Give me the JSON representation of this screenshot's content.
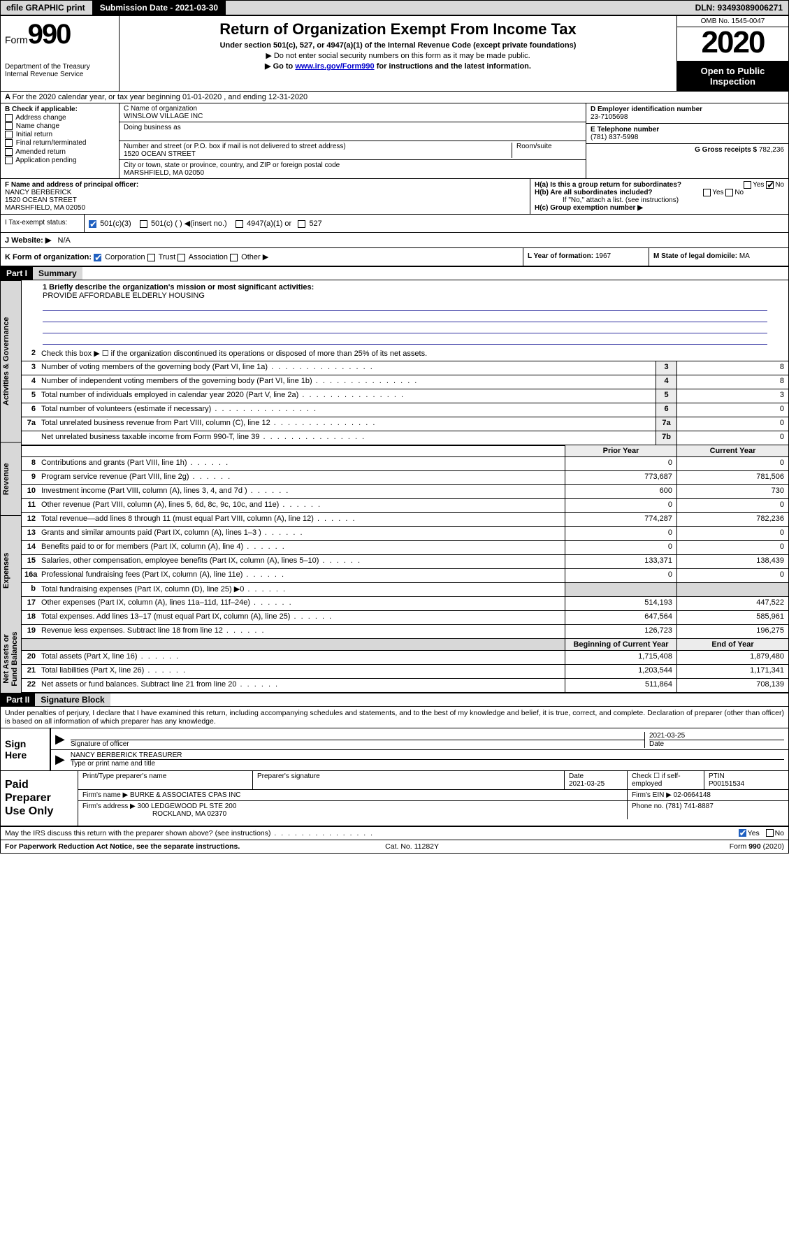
{
  "topbar": {
    "efile": "efile GRAPHIC print",
    "submission_label": "Submission Date - 2021-03-30",
    "dln": "DLN: 93493089006271"
  },
  "header": {
    "form_prefix": "Form",
    "form_num": "990",
    "dept": "Department of the Treasury\nInternal Revenue Service",
    "title": "Return of Organization Exempt From Income Tax",
    "subtitle": "Under section 501(c), 527, or 4947(a)(1) of the Internal Revenue Code (except private foundations)",
    "note1": "▶ Do not enter social security numbers on this form as it may be made public.",
    "note2_pre": "▶ Go to ",
    "note2_link": "www.irs.gov/Form990",
    "note2_post": " for instructions and the latest information.",
    "omb": "OMB No. 1545-0047",
    "year": "2020",
    "open": "Open to Public Inspection"
  },
  "period": "For the 2020 calendar year, or tax year beginning 01-01-2020   , and ending 12-31-2020",
  "B": {
    "label": "B Check if applicable:",
    "opts": [
      "Address change",
      "Name change",
      "Initial return",
      "Final return/terminated",
      "Amended return",
      "Application pending"
    ]
  },
  "C": {
    "name_label": "C Name of organization",
    "name": "WINSLOW VILLAGE INC",
    "dba_label": "Doing business as",
    "dba": "",
    "street_label": "Number and street (or P.O. box if mail is not delivered to street address)",
    "room_label": "Room/suite",
    "street": "1520 OCEAN STREET",
    "city_label": "City or town, state or province, country, and ZIP or foreign postal code",
    "city": "MARSHFIELD, MA  02050"
  },
  "D": {
    "label": "D Employer identification number",
    "val": "23-7105698"
  },
  "E": {
    "label": "E Telephone number",
    "val": "(781) 837-5998"
  },
  "G": {
    "label": "G Gross receipts $",
    "val": "782,236"
  },
  "F": {
    "label": "F  Name and address of principal officer:",
    "name": "NANCY BERBERICK",
    "street": "1520 OCEAN STREET",
    "city": "MARSHFIELD, MA  02050"
  },
  "H": {
    "a": "H(a)  Is this a group return for subordinates?",
    "b": "H(b)  Are all subordinates included?",
    "note": "If \"No,\" attach a list. (see instructions)",
    "c": "H(c)  Group exemption number ▶"
  },
  "I": {
    "label": "I   Tax-exempt status:",
    "opt1": "501(c)(3)",
    "opt2": "501(c) (  ) ◀(insert no.)",
    "opt3": "4947(a)(1) or",
    "opt4": "527"
  },
  "J": {
    "label": "J   Website: ▶",
    "val": "N/A"
  },
  "K": {
    "label": "K Form of organization:",
    "opts": [
      "Corporation",
      "Trust",
      "Association",
      "Other ▶"
    ]
  },
  "L": {
    "label": "L Year of formation:",
    "val": "1967"
  },
  "M": {
    "label": "M State of legal domicile:",
    "val": "MA"
  },
  "part1": {
    "hdr": "Part I",
    "title": "Summary"
  },
  "mission_label": "1  Briefly describe the organization's mission or most significant activities:",
  "mission": "PROVIDE AFFORDABLE ELDERLY HOUSING",
  "vtabs": [
    "Activities & Governance",
    "Revenue",
    "Expenses",
    "Net Assets or Fund Balances"
  ],
  "hdr_prior": "Prior Year",
  "hdr_current": "Current Year",
  "hdr_begin": "Beginning of Current Year",
  "hdr_end": "End of Year",
  "lines_gov": [
    {
      "n": "2",
      "d": "Check this box ▶ ☐  if the organization discontinued its operations or disposed of more than 25% of its net assets."
    },
    {
      "n": "3",
      "d": "Number of voting members of the governing body (Part VI, line 1a)",
      "box": "3",
      "v": "8"
    },
    {
      "n": "4",
      "d": "Number of independent voting members of the governing body (Part VI, line 1b)",
      "box": "4",
      "v": "8"
    },
    {
      "n": "5",
      "d": "Total number of individuals employed in calendar year 2020 (Part V, line 2a)",
      "box": "5",
      "v": "3"
    },
    {
      "n": "6",
      "d": "Total number of volunteers (estimate if necessary)",
      "box": "6",
      "v": "0"
    },
    {
      "n": "7a",
      "d": "Total unrelated business revenue from Part VIII, column (C), line 12",
      "box": "7a",
      "v": "0"
    },
    {
      "n": "",
      "d": "Net unrelated business taxable income from Form 990-T, line 39",
      "box": "7b",
      "v": "0"
    }
  ],
  "lines_rev": [
    {
      "n": "8",
      "d": "Contributions and grants (Part VIII, line 1h)",
      "p": "0",
      "c": "0"
    },
    {
      "n": "9",
      "d": "Program service revenue (Part VIII, line 2g)",
      "p": "773,687",
      "c": "781,506"
    },
    {
      "n": "10",
      "d": "Investment income (Part VIII, column (A), lines 3, 4, and 7d )",
      "p": "600",
      "c": "730"
    },
    {
      "n": "11",
      "d": "Other revenue (Part VIII, column (A), lines 5, 6d, 8c, 9c, 10c, and 11e)",
      "p": "0",
      "c": "0"
    },
    {
      "n": "12",
      "d": "Total revenue—add lines 8 through 11 (must equal Part VIII, column (A), line 12)",
      "p": "774,287",
      "c": "782,236"
    }
  ],
  "lines_exp": [
    {
      "n": "13",
      "d": "Grants and similar amounts paid (Part IX, column (A), lines 1–3 )",
      "p": "0",
      "c": "0"
    },
    {
      "n": "14",
      "d": "Benefits paid to or for members (Part IX, column (A), line 4)",
      "p": "0",
      "c": "0"
    },
    {
      "n": "15",
      "d": "Salaries, other compensation, employee benefits (Part IX, column (A), lines 5–10)",
      "p": "133,371",
      "c": "138,439"
    },
    {
      "n": "16a",
      "d": "Professional fundraising fees (Part IX, column (A), line 11e)",
      "p": "0",
      "c": "0"
    },
    {
      "n": "b",
      "d": "Total fundraising expenses (Part IX, column (D), line 25) ▶0",
      "p": "",
      "c": "",
      "gray": true
    },
    {
      "n": "17",
      "d": "Other expenses (Part IX, column (A), lines 11a–11d, 11f–24e)",
      "p": "514,193",
      "c": "447,522"
    },
    {
      "n": "18",
      "d": "Total expenses. Add lines 13–17 (must equal Part IX, column (A), line 25)",
      "p": "647,564",
      "c": "585,961"
    },
    {
      "n": "19",
      "d": "Revenue less expenses. Subtract line 18 from line 12",
      "p": "126,723",
      "c": "196,275"
    }
  ],
  "lines_net": [
    {
      "n": "20",
      "d": "Total assets (Part X, line 16)",
      "p": "1,715,408",
      "c": "1,879,480"
    },
    {
      "n": "21",
      "d": "Total liabilities (Part X, line 26)",
      "p": "1,203,544",
      "c": "1,171,341"
    },
    {
      "n": "22",
      "d": "Net assets or fund balances. Subtract line 21 from line 20",
      "p": "511,864",
      "c": "708,139"
    }
  ],
  "part2": {
    "hdr": "Part II",
    "title": "Signature Block"
  },
  "perjury": "Under penalties of perjury, I declare that I have examined this return, including accompanying schedules and statements, and to the best of my knowledge and belief, it is true, correct, and complete. Declaration of preparer (other than officer) is based on all information of which preparer has any knowledge.",
  "sign": {
    "here": "Sign Here",
    "sig_label": "Signature of officer",
    "date": "2021-03-25",
    "date_label": "Date",
    "name": "NANCY BERBERICK  TREASURER",
    "name_label": "Type or print name and title"
  },
  "paid": {
    "label": "Paid Preparer Use Only",
    "h1": "Print/Type preparer's name",
    "h2": "Preparer's signature",
    "h3": "Date",
    "date": "2021-03-25",
    "h4": "Check ☐ if self-employed",
    "h5": "PTIN",
    "ptin": "P00151534",
    "firm_label": "Firm's name     ▶",
    "firm": "BURKE & ASSOCIATES CPAS INC",
    "ein_label": "Firm's EIN ▶",
    "ein": "02-0664148",
    "addr_label": "Firm's address ▶",
    "addr1": "300 LEDGEWOOD PL STE 200",
    "addr2": "ROCKLAND, MA  02370",
    "phone_label": "Phone no.",
    "phone": "(781) 741-8887"
  },
  "discuss": "May the IRS discuss this return with the preparer shown above? (see instructions)",
  "bottom": {
    "left": "For Paperwork Reduction Act Notice, see the separate instructions.",
    "mid": "Cat. No. 11282Y",
    "right": "Form 990 (2020)"
  }
}
